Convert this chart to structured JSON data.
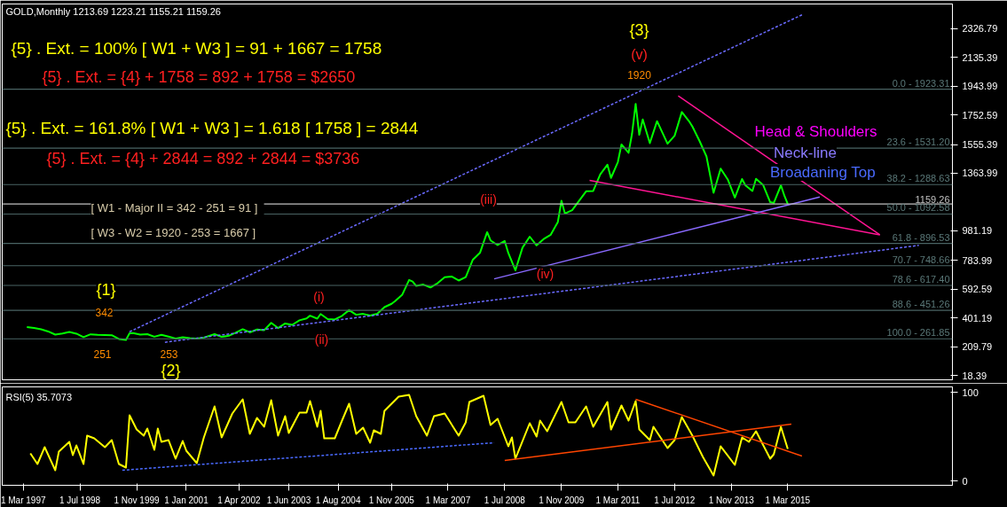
{
  "chart_data": [
    {
      "type": "line",
      "title": "GOLD,Monthly  1213.69 1223.21 1155.21 1159.26",
      "xlim": [
        "1996-09-01",
        "2019-01-15"
      ],
      "ylim": [
        -11,
        2491
      ],
      "yticks": [
        18.39,
        209.79,
        401.19,
        592.59,
        783.99,
        981.19,
        1363.99,
        1555.39,
        1752.59,
        1943.99,
        2135.39,
        2326.79
      ],
      "tick_labels": "y",
      "series": [
        {
          "color": "#00ff00",
          "x": [
            "1997-04",
            "1997-06",
            "1997-08",
            "1997-10",
            "1997-12",
            "1998-02",
            "1998-04",
            "1998-06",
            "1998-08",
            "1998-10",
            "1998-12",
            "1999-02",
            "1999-04",
            "1999-06",
            "1999-08",
            "1999-09",
            "1999-10",
            "1999-12",
            "2000-02",
            "2000-04",
            "2000-06",
            "2000-08",
            "2000-10",
            "2000-12",
            "2001-02",
            "2001-04",
            "2001-06",
            "2001-09",
            "2001-11",
            "2002-01",
            "2002-03",
            "2002-05",
            "2002-07",
            "2002-09",
            "2002-11",
            "2003-01",
            "2003-03",
            "2003-05",
            "2003-07",
            "2003-09",
            "2003-11",
            "2003-12",
            "2004-02",
            "2004-03",
            "2004-05",
            "2004-07",
            "2004-09",
            "2004-11",
            "2005-01",
            "2005-03",
            "2005-05",
            "2005-07",
            "2005-09",
            "2005-11",
            "2005-12",
            "2006-02",
            "2006-04",
            "2006-05",
            "2006-06",
            "2006-08",
            "2006-10",
            "2006-12",
            "2007-02",
            "2007-04",
            "2007-06",
            "2007-08",
            "2007-10",
            "2007-12",
            "2008-02",
            "2008-03",
            "2008-05",
            "2008-07",
            "2008-08",
            "2008-10",
            "2008-12",
            "2009-02",
            "2009-04",
            "2009-06",
            "2009-08",
            "2009-10",
            "2009-11",
            "2009-12",
            "2010-02",
            "2010-04",
            "2010-06",
            "2010-08",
            "2010-10",
            "2010-12",
            "2011-01",
            "2011-03",
            "2011-04",
            "2011-06",
            "2011-07",
            "2011-08",
            "2011-09",
            "2011-10",
            "2011-12",
            "2012-02",
            "2012-05",
            "2012-07",
            "2012-09",
            "2012-11",
            "2012-12",
            "2013-02",
            "2013-04",
            "2013-06",
            "2013-08",
            "2013-10",
            "2013-12",
            "2014-02",
            "2014-03",
            "2014-05",
            "2014-06",
            "2014-08",
            "2014-10",
            "2014-11",
            "2015-01",
            "2015-02",
            "2015-03"
          ],
          "values": [
            340,
            334,
            325,
            311,
            290,
            297,
            308,
            296,
            273,
            292,
            288,
            287,
            286,
            261,
            255,
            299,
            300,
            290,
            293,
            276,
            288,
            277,
            264,
            272,
            266,
            263,
            270,
            293,
            275,
            282,
            302,
            326,
            305,
            324,
            319,
            368,
            334,
            364,
            355,
            385,
            398,
            416,
            396,
            427,
            393,
            391,
            415,
            453,
            422,
            428,
            417,
            429,
            473,
            495,
            513,
            556,
            654,
            643,
            614,
            623,
            604,
            632,
            672,
            677,
            650,
            673,
            789,
            834,
            972,
            917,
            886,
            913,
            833,
            718,
            869,
            942,
            884,
            926,
            955,
            1040,
            1181,
            1096,
            1118,
            1180,
            1244,
            1246,
            1357,
            1421,
            1333,
            1439,
            1556,
            1500,
            1628,
            1826,
            1620,
            1722,
            1565,
            1711,
            1561,
            1614,
            1772,
            1712,
            1675,
            1578,
            1476,
            1234,
            1395,
            1323,
            1202,
            1326,
            1284,
            1246,
            1327,
            1286,
            1172,
            1167,
            1284,
            1212,
            1159
          ]
        },
        {
          "type": "line",
          "color": "#ff1493",
          "x": [
            "2012-08",
            "2017-05"
          ],
          "values": [
            1880,
            954
          ]
        },
        {
          "type": "line",
          "color": "#ff1493",
          "x": [
            "2010-07",
            "2017-05"
          ],
          "values": [
            1317,
            954
          ]
        },
        {
          "type": "line",
          "color": "#6a6aff",
          "line_style": "dashed",
          "x": [
            "1999-09",
            "2015-07"
          ],
          "values": [
            309,
            2419
          ]
        },
        {
          "type": "line",
          "color": "#6a6aff",
          "line_style": "dashed",
          "x": [
            "2000-07",
            "2018-04"
          ],
          "values": [
            239,
            884
          ]
        },
        {
          "type": "line",
          "color": "#8a6aff",
          "x": [
            "2008-04",
            "2015-12"
          ],
          "values": [
            661,
            1206
          ]
        }
      ],
      "ref_lines": [
        {
          "axis": "y",
          "value": 1923.31,
          "color": "#4a6464"
        },
        {
          "axis": "y",
          "value": 1531.2,
          "color": "#4a6464"
        },
        {
          "axis": "y",
          "value": 1288.63,
          "color": "#4a6464"
        },
        {
          "axis": "y",
          "value": 1092.58,
          "color": "#4a6464"
        },
        {
          "axis": "y",
          "value": 896.53,
          "color": "#4a6464"
        },
        {
          "axis": "y",
          "value": 748.66,
          "color": "#4a6464"
        },
        {
          "axis": "y",
          "value": 617.4,
          "color": "#4a6464"
        },
        {
          "axis": "y",
          "value": 451.26,
          "color": "#4a6464"
        },
        {
          "axis": "y",
          "value": 261.85,
          "color": "#4a6464"
        },
        {
          "axis": "y",
          "value": 1159.26,
          "label": "1159.26",
          "color": "#c0c0c0"
        }
      ],
      "annotations": [
        "{5} . Ext. =  100% [ W1 + W3 ]  =   91 + 1667 = 1758",
        "{5} . Ext. = {4} + 1758 = 892 + 1758 =  $2650",
        "{5} . Ext. =  161.8% [ W1 + W3 ]  =   1.618 [ 1758 ] = 2844",
        "{5} . Ext. = {4} + 2844 = 892 + 2844 =  $3736",
        "[ W1 - Major II = 342 - 251  =  91 ]",
        "[ W3 - W2 = 1920 - 253 =   1667 ]",
        "{1}",
        "342",
        "251",
        "253",
        "{2}",
        "(i)",
        "(ii)",
        "(iii)",
        "(iv)",
        "{3}",
        "(v)",
        "1920",
        "Head & Shoulders",
        "Neck-line",
        "Broadaning Top",
        {
          "text": "0.0 - 1923.31",
          "y": 1923.31
        },
        {
          "text": "23.6 - 1531.20",
          "y": 1531.2
        },
        {
          "text": "38.2 - 1288.63",
          "y": 1288.63
        },
        {
          "text": "50.0 - 1092.58",
          "y": 1092.58
        },
        {
          "text": "61.8 - 896.53",
          "y": 896.53
        },
        {
          "text": "70.7 - 748.66",
          "y": 748.66
        },
        {
          "text": "78.6 - 617.40",
          "y": 617.4
        },
        {
          "text": "88.6 - 451.26",
          "y": 451.26
        },
        {
          "text": "100.0 - 261.85",
          "y": 261.85
        }
      ]
    },
    {
      "type": "line",
      "title": "RSI(5) 35.7073",
      "xlim": [
        "1996-09-01",
        "2019-01-15"
      ],
      "ylim": [
        -5,
        106
      ],
      "yticks": [
        0,
        100
      ],
      "xticks": [
        {
          "value": "1997-03-01",
          "label": "1 Mar 1997"
        },
        {
          "value": "1998-07-01",
          "label": "1 Jul 1998"
        },
        {
          "value": "1999-11-01",
          "label": "1 Nov 1999"
        },
        {
          "value": "2001-01-01",
          "label": "1 Jan 2001"
        },
        {
          "value": "2002-04-01",
          "label": "1 Apr 2002"
        },
        {
          "value": "2003-06-01",
          "label": "1 Jun 2003"
        },
        {
          "value": "2004-08-01",
          "label": "1 Aug 2004"
        },
        {
          "value": "2005-11-01",
          "label": "1 Nov 2005"
        },
        {
          "value": "2007-03-01",
          "label": "1 Mar 2007"
        },
        {
          "value": "2008-07-01",
          "label": "1 Jul 2008"
        },
        {
          "value": "2009-11-01",
          "label": "1 Nov 2009"
        },
        {
          "value": "2011-03-01",
          "label": "1 Mar 2011"
        },
        {
          "value": "2012-07-01",
          "label": "1 Jul 2012"
        },
        {
          "value": "2013-11-01",
          "label": "1 Nov 2013"
        },
        {
          "value": "2015-03-01",
          "label": "1 Mar 2015"
        }
      ],
      "series": [
        {
          "color": "#ffff00",
          "x": [
            "1997-05",
            "1997-07",
            "1997-09",
            "1997-12",
            "1998-01",
            "1998-04",
            "1998-05",
            "1998-06",
            "1998-08",
            "1998-09",
            "1998-11",
            "1999-02",
            "1999-04",
            "1999-06",
            "1999-08",
            "1999-09",
            "1999-11",
            "2000-01",
            "2000-02",
            "2000-04",
            "2000-05",
            "2000-06",
            "2000-08",
            "2000-10",
            "2000-12",
            "2001-01",
            "2001-04",
            "2001-06",
            "2001-09",
            "2001-11",
            "2002-02",
            "2002-05",
            "2002-07",
            "2002-09",
            "2002-11",
            "2003-01",
            "2003-03",
            "2003-05",
            "2003-06",
            "2003-09",
            "2003-11",
            "2003-12",
            "2004-02",
            "2004-03",
            "2004-04",
            "2004-07",
            "2004-09",
            "2004-11",
            "2005-01",
            "2005-03",
            "2005-05",
            "2005-06",
            "2005-08",
            "2005-09",
            "2006-01",
            "2006-04",
            "2006-06",
            "2006-09",
            "2006-11",
            "2007-02",
            "2007-06",
            "2007-08",
            "2007-09",
            "2008-01",
            "2008-03",
            "2008-05",
            "2008-08",
            "2008-09",
            "2008-10",
            "2009-02",
            "2009-04",
            "2009-05",
            "2009-07",
            "2009-11",
            "2010-01",
            "2010-03",
            "2010-06",
            "2010-08",
            "2010-12",
            "2011-01",
            "2011-04",
            "2011-06",
            "2011-08",
            "2011-09",
            "2011-12",
            "2012-01",
            "2012-05",
            "2012-07",
            "2012-09",
            "2012-12",
            "2013-03",
            "2013-06",
            "2013-08",
            "2013-12",
            "2014-02",
            "2014-04",
            "2014-06",
            "2014-10",
            "2014-11",
            "2015-01",
            "2015-03"
          ],
          "values": [
            31,
            19,
            38,
            12,
            33,
            44,
            29,
            40,
            19,
            51,
            48,
            38,
            46,
            19,
            15,
            74,
            58,
            51,
            59,
            35,
            59,
            44,
            46,
            25,
            45,
            34,
            20,
            49,
            84,
            49,
            76,
            92,
            53,
            71,
            61,
            91,
            51,
            73,
            54,
            77,
            77,
            90,
            61,
            79,
            48,
            48,
            68,
            87,
            53,
            60,
            43,
            57,
            53,
            79,
            95,
            97,
            73,
            51,
            73,
            76,
            51,
            66,
            89,
            96,
            63,
            70,
            39,
            49,
            25,
            65,
            50,
            68,
            56,
            89,
            66,
            66,
            84,
            61,
            89,
            58,
            85,
            68,
            90,
            58,
            46,
            61,
            37,
            46,
            72,
            51,
            27,
            6,
            39,
            18,
            49,
            44,
            56,
            25,
            30,
            61,
            36
          ]
        },
        {
          "type": "line",
          "color": "#ff4500",
          "x": [
            "2008-07",
            "2015-04"
          ],
          "values": [
            23,
            64
          ]
        },
        {
          "type": "line",
          "color": "#ff4500",
          "x": [
            "2011-08",
            "2015-07"
          ],
          "values": [
            92,
            28
          ]
        },
        {
          "type": "line",
          "color": "#4a6aff",
          "line_style": "dashed",
          "x": [
            "1999-07",
            "2008-04"
          ],
          "values": [
            12,
            43
          ]
        }
      ]
    }
  ]
}
